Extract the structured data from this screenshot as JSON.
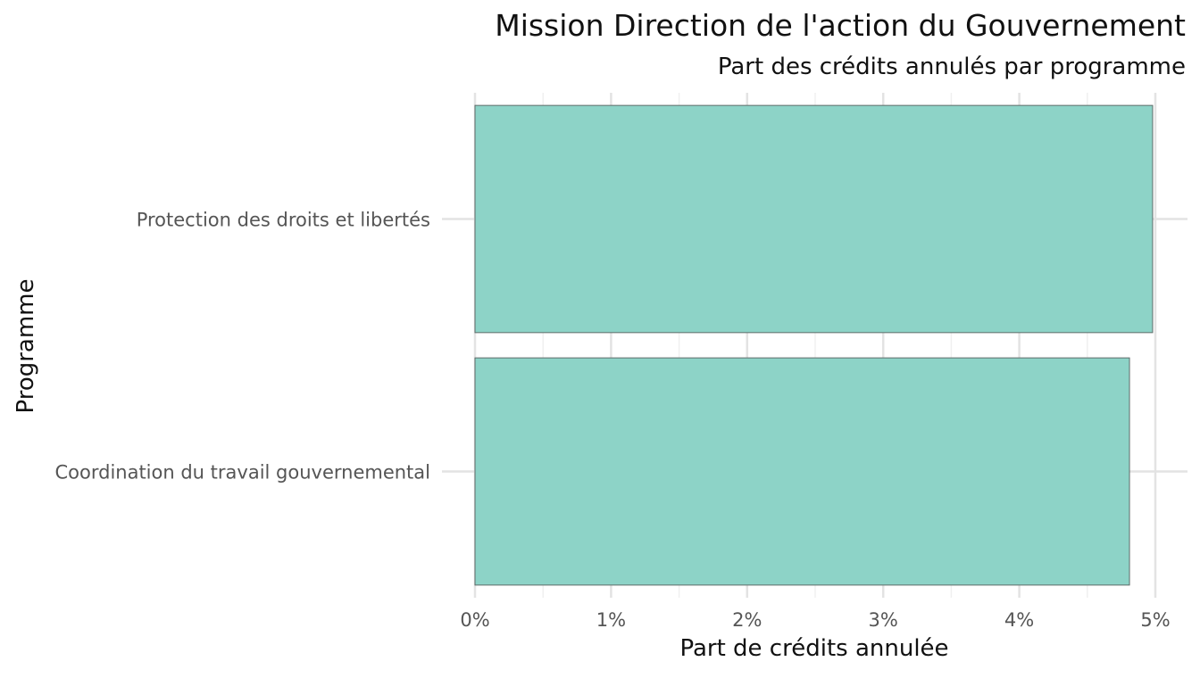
{
  "chart_data": {
    "type": "bar",
    "orientation": "horizontal",
    "title": "Mission Direction de l'action du Gouvernement",
    "subtitle": "Part des crédits annulés par programme",
    "xlabel": "Part de crédits annulée",
    "ylabel": "Programme",
    "categories": [
      "Protection des droits et libertés",
      "Coordination du travail gouvernemental"
    ],
    "values": [
      0.0498,
      0.0481
    ],
    "xlim": [
      0,
      0.05
    ],
    "x_ticks": [
      0,
      0.01,
      0.02,
      0.03,
      0.04,
      0.05
    ],
    "x_tick_labels": [
      "0%",
      "1%",
      "2%",
      "3%",
      "4%",
      "5%"
    ],
    "grid": true,
    "legend": "none",
    "colors": {
      "bar_fill": "#8dd3c7",
      "bar_stroke": "#5f6b69",
      "grid_major": "#e3e3e3",
      "grid_minor": "#f0f0f0",
      "title_text": "#111111",
      "axis_text": "#555555"
    }
  }
}
